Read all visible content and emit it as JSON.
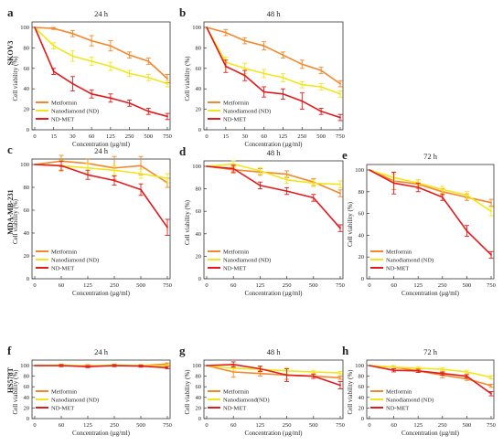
{
  "colors": {
    "Metformin": "#f5862a",
    "Nanodiamond": "#f2e61a",
    "ND-MET": "#e31a1c"
  },
  "cell_lines": [
    "SKOV3",
    "MDA-MB-231",
    "HS578T"
  ],
  "chart_data": [
    {
      "id": "a",
      "label": "a",
      "type": "line",
      "title": "24 h",
      "cell_line": "SKOV3",
      "categories": [
        "0",
        "15",
        "30",
        "60",
        "125",
        "250",
        "500",
        "750"
      ],
      "xlabel": "Concentration (µg/ml)",
      "ylabel": "Cell viability (%)",
      "ylim": [
        0,
        100
      ],
      "yticks": [
        "0",
        "20",
        "40",
        "60",
        "80",
        "100"
      ],
      "legend_position": "bottom-left",
      "series": [
        {
          "name": "Metformin",
          "values": [
            100,
            99,
            94,
            87,
            82,
            73,
            67,
            50
          ],
          "err": [
            0,
            1,
            3,
            5,
            5,
            3,
            3,
            4
          ]
        },
        {
          "name": "Nanodiamond (ND)",
          "values": [
            100,
            82,
            72,
            67,
            62,
            55,
            51,
            45
          ],
          "err": [
            0,
            3,
            5,
            4,
            4,
            3,
            3,
            3
          ]
        },
        {
          "name": "ND-MET",
          "values": [
            100,
            57,
            45,
            35,
            31,
            26,
            18,
            13
          ],
          "err": [
            0,
            3,
            7,
            4,
            4,
            3,
            3,
            3
          ]
        }
      ]
    },
    {
      "id": "b",
      "label": "b",
      "type": "line",
      "title": "48 h",
      "cell_line": "SKOV3",
      "categories": [
        "0",
        "15",
        "30",
        "60",
        "125",
        "250",
        "500",
        "750"
      ],
      "xlabel": "Concentration (µg/ml)",
      "ylabel": "Cell viability (%)",
      "ylim": [
        0,
        100
      ],
      "yticks": [
        "0",
        "20",
        "40",
        "60",
        "80",
        "100"
      ],
      "legend_position": "bottom-left",
      "series": [
        {
          "name": "Metformin",
          "values": [
            100,
            95,
            87,
            82,
            73,
            64,
            58,
            45
          ],
          "err": [
            0,
            3,
            3,
            4,
            3,
            4,
            3,
            3
          ]
        },
        {
          "name": "Nanodiamond (ND)",
          "values": [
            100,
            66,
            60,
            55,
            51,
            44,
            42,
            35
          ],
          "err": [
            0,
            5,
            5,
            4,
            4,
            3,
            3,
            3
          ]
        },
        {
          "name": "ND-MET",
          "values": [
            100,
            62,
            53,
            37,
            35,
            28,
            18,
            12
          ],
          "err": [
            0,
            6,
            5,
            5,
            5,
            8,
            3,
            3
          ]
        }
      ]
    },
    {
      "id": "c",
      "label": "c",
      "type": "line",
      "title": "24 h",
      "cell_line": "MDA-MB-231",
      "categories": [
        "0",
        "60",
        "125",
        "250",
        "500",
        "750"
      ],
      "xlabel": "Concentration (µg/ml)",
      "ylabel": "Cell viability (%)",
      "ylim": [
        0,
        100
      ],
      "yticks": [
        "0",
        "20",
        "40",
        "60",
        "80",
        "100"
      ],
      "legend_position": "bottom-left",
      "series": [
        {
          "name": "Metformin",
          "values": [
            100,
            103,
            101,
            97,
            99,
            84
          ],
          "err": [
            0,
            5,
            4,
            10,
            8,
            4
          ]
        },
        {
          "name": "Nanodiamond (ND)",
          "values": [
            100,
            99,
            97,
            95,
            92,
            88
          ],
          "err": [
            0,
            5,
            4,
            4,
            4,
            4
          ]
        },
        {
          "name": "ND-MET",
          "values": [
            100,
            99,
            91,
            86,
            78,
            45
          ],
          "err": [
            0,
            4,
            4,
            4,
            5,
            7
          ]
        }
      ]
    },
    {
      "id": "d",
      "label": "d",
      "type": "line",
      "title": "48 h",
      "cell_line": "MDA-MB-231",
      "categories": [
        "0",
        "60",
        "125",
        "250",
        "500",
        "750"
      ],
      "xlabel": "Concentration (µg/ml)",
      "ylabel": "Cell viability (%)",
      "ylim": [
        0,
        100
      ],
      "yticks": [
        "0",
        "20",
        "40",
        "60",
        "80",
        "100"
      ],
      "legend_position": "bottom-left",
      "series": [
        {
          "name": "Metformin",
          "values": [
            100,
            97,
            95,
            93,
            86,
            76
          ],
          "err": [
            0,
            3,
            3,
            3,
            3,
            3
          ]
        },
        {
          "name": "Nanodiamond (ND)",
          "values": [
            100,
            102,
            96,
            88,
            85,
            84
          ],
          "err": [
            0,
            3,
            3,
            3,
            3,
            3
          ]
        },
        {
          "name": "ND-MET",
          "values": [
            100,
            98,
            83,
            78,
            72,
            45
          ],
          "err": [
            0,
            3,
            3,
            3,
            3,
            3
          ]
        }
      ]
    },
    {
      "id": "e",
      "label": "e",
      "type": "line",
      "title": "72 h",
      "cell_line": "MDA-MB-231",
      "categories": [
        "0",
        "60",
        "125",
        "250",
        "500",
        "750"
      ],
      "xlabel": "Concentration (µg/ml)",
      "ylabel": "Cell viability (%)",
      "ylim": [
        0,
        100
      ],
      "yticks": [
        "0",
        "20",
        "40",
        "60",
        "80",
        "100"
      ],
      "legend_position": "bottom-left",
      "series": [
        {
          "name": "Metformin",
          "values": [
            100,
            90,
            87,
            80,
            75,
            70
          ],
          "err": [
            0,
            8,
            4,
            3,
            3,
            3
          ]
        },
        {
          "name": "Nanodiamond (ND)",
          "values": [
            100,
            93,
            88,
            82,
            77,
            62
          ],
          "err": [
            0,
            3,
            3,
            3,
            3,
            4
          ]
        },
        {
          "name": "ND-MET",
          "values": [
            100,
            88,
            84,
            75,
            44,
            22
          ],
          "err": [
            0,
            10,
            4,
            3,
            5,
            3
          ]
        }
      ]
    },
    {
      "id": "f",
      "label": "f",
      "type": "line",
      "title": "24 h",
      "cell_line": "HS578T",
      "categories": [
        "0",
        "60",
        "125",
        "250",
        "500",
        "750"
      ],
      "xlabel": "Concentration (µg/ml)",
      "ylabel": "Cell viability (%)",
      "ylim": [
        0,
        100
      ],
      "yticks": [
        "0",
        "20",
        "40",
        "60",
        "80",
        "100"
      ],
      "legend_position": "bottom-left",
      "series": [
        {
          "name": "Metformin",
          "values": [
            100,
            100,
            100,
            100,
            100,
            103
          ],
          "err": [
            0,
            2,
            2,
            2,
            2,
            2
          ]
        },
        {
          "name": "Nanodiamond (ND)",
          "values": [
            100,
            101,
            99,
            101,
            100,
            100
          ],
          "err": [
            0,
            2,
            2,
            2,
            2,
            2
          ]
        },
        {
          "name": "ND-MET",
          "values": [
            100,
            100,
            98,
            100,
            99,
            96
          ],
          "err": [
            0,
            2,
            2,
            2,
            2,
            2
          ]
        }
      ]
    },
    {
      "id": "g",
      "label": "g",
      "type": "line",
      "title": "48 h",
      "cell_line": "HS578T",
      "categories": [
        "0",
        "60",
        "125",
        "250",
        "500",
        "750"
      ],
      "xlabel": "Concentration (µg/ml)",
      "ylabel": "Cell viability (%)",
      "ylim": [
        0,
        100
      ],
      "yticks": [
        "0",
        "20",
        "40",
        "60",
        "80",
        "100"
      ],
      "legend_position": "bottom-left",
      "series": [
        {
          "name": "Metformin",
          "values": [
            100,
            88,
            85,
            82,
            80,
            77
          ],
          "err": [
            0,
            10,
            5,
            8,
            4,
            3
          ]
        },
        {
          "name": "Nanodiamond(ND)",
          "values": [
            100,
            95,
            93,
            90,
            88,
            86
          ],
          "err": [
            0,
            5,
            5,
            6,
            3,
            3
          ]
        },
        {
          "name": "ND-MET",
          "values": [
            100,
            102,
            94,
            82,
            80,
            63
          ],
          "err": [
            0,
            5,
            5,
            12,
            4,
            7
          ]
        }
      ]
    },
    {
      "id": "h",
      "label": "h",
      "type": "line",
      "title": "72 h",
      "cell_line": "HS578T",
      "categories": [
        "0",
        "60",
        "125",
        "250",
        "500",
        "750"
      ],
      "xlabel": "Concentration (µg/ml)",
      "ylabel": "Cell viability (%)",
      "ylim": [
        0,
        100
      ],
      "yticks": [
        "0",
        "20",
        "40",
        "60",
        "80",
        "100"
      ],
      "legend_position": "bottom-left",
      "series": [
        {
          "name": "Metformin",
          "values": [
            100,
            97,
            90,
            82,
            75,
            62
          ],
          "err": [
            0,
            3,
            3,
            5,
            3,
            3
          ]
        },
        {
          "name": "Nanodiamond (ND)",
          "values": [
            100,
            97,
            95,
            93,
            88,
            78
          ],
          "err": [
            0,
            3,
            3,
            3,
            3,
            3
          ]
        },
        {
          "name": "ND-MET",
          "values": [
            100,
            91,
            90,
            85,
            80,
            47
          ],
          "err": [
            0,
            3,
            3,
            3,
            3,
            4
          ]
        }
      ]
    }
  ]
}
